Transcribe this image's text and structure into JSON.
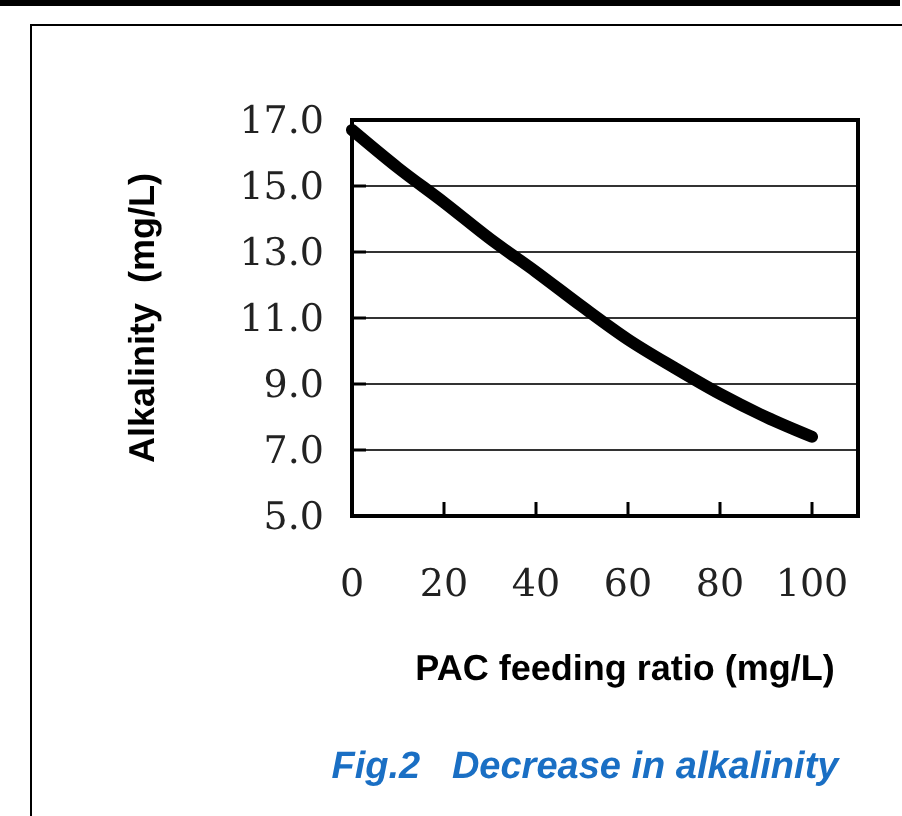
{
  "chart_data": {
    "type": "line",
    "xlabel": "PAC feeding ratio (mg/L)",
    "ylabel": "Alkalinity  (mg/L)",
    "annotations": [
      "Fig.2   Decrease in alkalinity"
    ],
    "x": [
      0,
      10,
      20,
      30,
      40,
      50,
      60,
      70,
      80,
      90,
      100
    ],
    "series": [
      {
        "color": "#000000",
        "values": [
          16.7,
          15.55,
          14.5,
          13.4,
          12.4,
          11.35,
          10.35,
          9.5,
          8.7,
          8.0,
          7.4
        ]
      }
    ],
    "xlim": [
      0,
      110
    ],
    "ylim": [
      5,
      17
    ],
    "xticks": [
      0,
      20,
      40,
      60,
      80,
      100
    ],
    "yticks": [
      {
        "value": 5,
        "label": "5.0"
      },
      {
        "value": 7,
        "label": "7.0"
      },
      {
        "value": 9,
        "label": "9.0"
      },
      {
        "value": 11,
        "label": "11.0"
      },
      {
        "value": 13,
        "label": "13.0"
      },
      {
        "value": 15,
        "label": "15.0"
      },
      {
        "value": 17,
        "label": "17.0"
      }
    ],
    "grid": "y",
    "marker": "none",
    "line_style": "solid"
  }
}
